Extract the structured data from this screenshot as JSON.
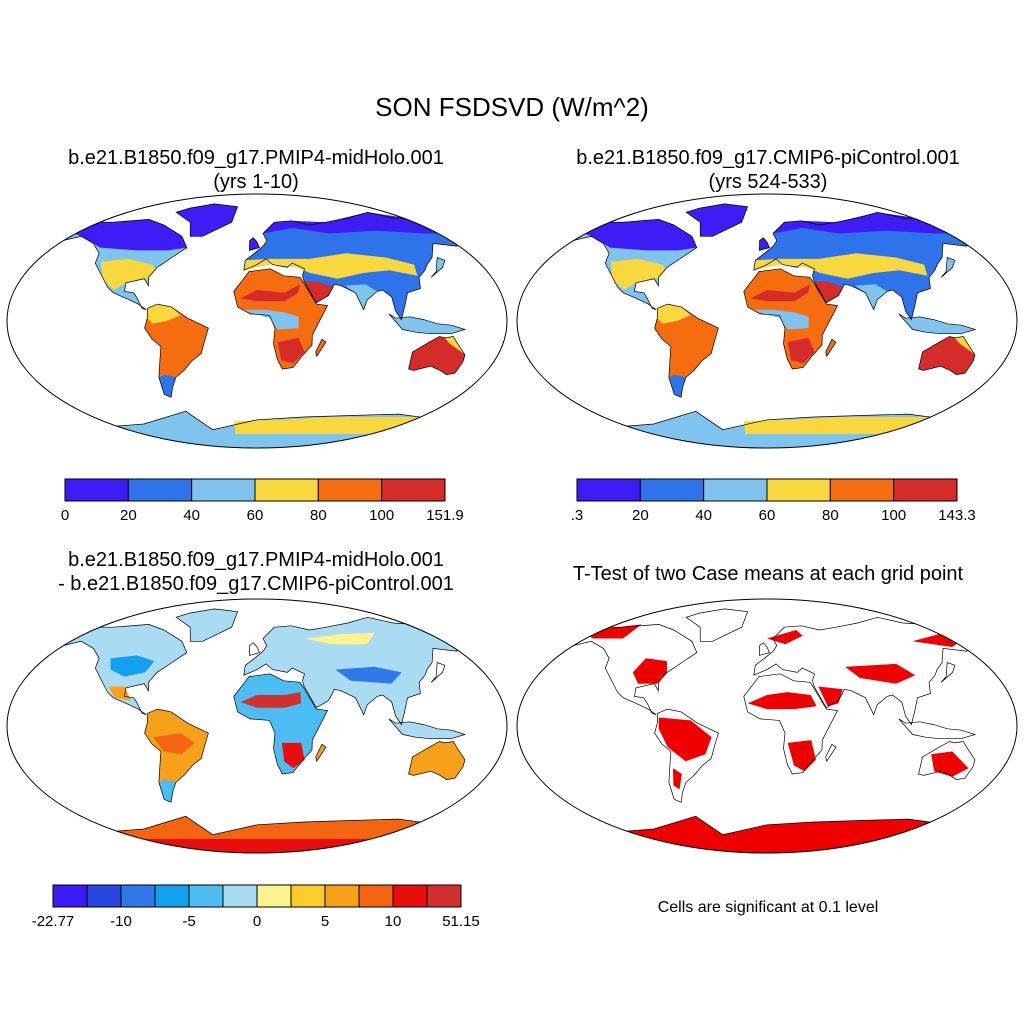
{
  "title": "SON FSDSVD (W/m^2)",
  "panels": [
    {
      "id": "p1",
      "case": "b.e21.B1850.f09_g17.PMIP4-midHolo.001",
      "years": "(yrs 1-10)"
    },
    {
      "id": "p2",
      "case": "b.e21.B1850.f09_g17.CMIP6-piControl.001",
      "years": "(yrs 524-533)"
    },
    {
      "id": "p3",
      "case": "b.e21.B1850.f09_g17.PMIP4-midHolo.001",
      "case2": "- b.e21.B1850.f09_g17.CMIP6-piControl.001"
    },
    {
      "id": "p4",
      "title": "T-Test of two Case means at each grid point",
      "note": "Cells are significant at 0.1 level",
      "significance_color": "#ee0000"
    }
  ],
  "colorbars": [
    {
      "id": "cb1",
      "colors": [
        "#3d1cf5",
        "#2f73ea",
        "#7fc4ef",
        "#f9d83e",
        "#f66d0f",
        "#d52b2b"
      ],
      "labels": [
        "0",
        "20",
        "40",
        "60",
        "80",
        "100",
        "151.9"
      ]
    },
    {
      "id": "cb2",
      "colors": [
        "#3d1cf5",
        "#2f73ea",
        "#7fc4ef",
        "#f9d83e",
        "#f66d0f",
        "#d52b2b"
      ],
      "labels": [
        ".3",
        "20",
        "40",
        "60",
        "80",
        "100",
        "143.3"
      ]
    },
    {
      "id": "cb3",
      "colors": [
        "#3c1cf5",
        "#2747e0",
        "#2f79ea",
        "#12a1ef",
        "#4cbdf2",
        "#a9dbf3",
        "#fdf38e",
        "#fbcc2c",
        "#f7a019",
        "#f36510",
        "#e80e0e",
        "#d42f2f"
      ],
      "labels": [
        "-22.77",
        "-10",
        "-5",
        "0",
        "5",
        "10",
        "51.15"
      ]
    }
  ],
  "colors": {
    "max": "#d52b2b",
    "high": "#f66d0f",
    "mid": "#f9d83e",
    "low": "#7fc4ef",
    "lower": "#2f73ea",
    "min": "#3d1cf5",
    "ocean": "#ffffff",
    "coast": "#000000"
  }
}
